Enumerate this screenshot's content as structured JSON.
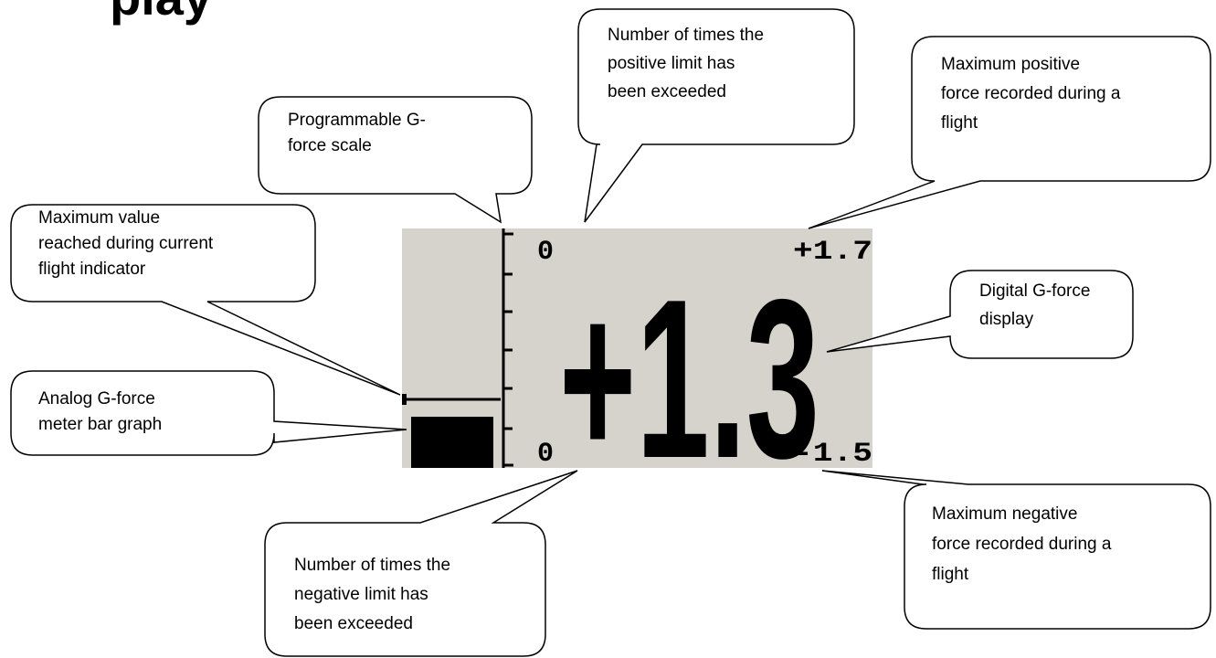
{
  "title": "play",
  "display": {
    "top_left": "0",
    "top_right": "+1.7",
    "main": "+1.3",
    "bottom_left": "0",
    "bottom_right": "-1.5"
  },
  "callouts": [
    {
      "lines": [
        "Maximum value",
        "reached during current",
        "flight indicator"
      ]
    },
    {
      "lines": [
        "Analog G-force",
        "meter bar graph"
      ]
    },
    {
      "lines": [
        "Programmable G-",
        "force scale"
      ]
    },
    {
      "lines": [
        "Number of times the",
        "positive limit has",
        "been exceeded"
      ]
    },
    {
      "lines": [
        "Maximum positive",
        "force recorded during a",
        "flight"
      ]
    },
    {
      "lines": [
        "Digital G-force",
        "display"
      ]
    },
    {
      "lines": [
        "Maximum negative",
        "force recorded during a",
        "flight"
      ]
    },
    {
      "lines": [
        "Number of times the",
        "negative limit has",
        "been exceeded"
      ]
    }
  ]
}
